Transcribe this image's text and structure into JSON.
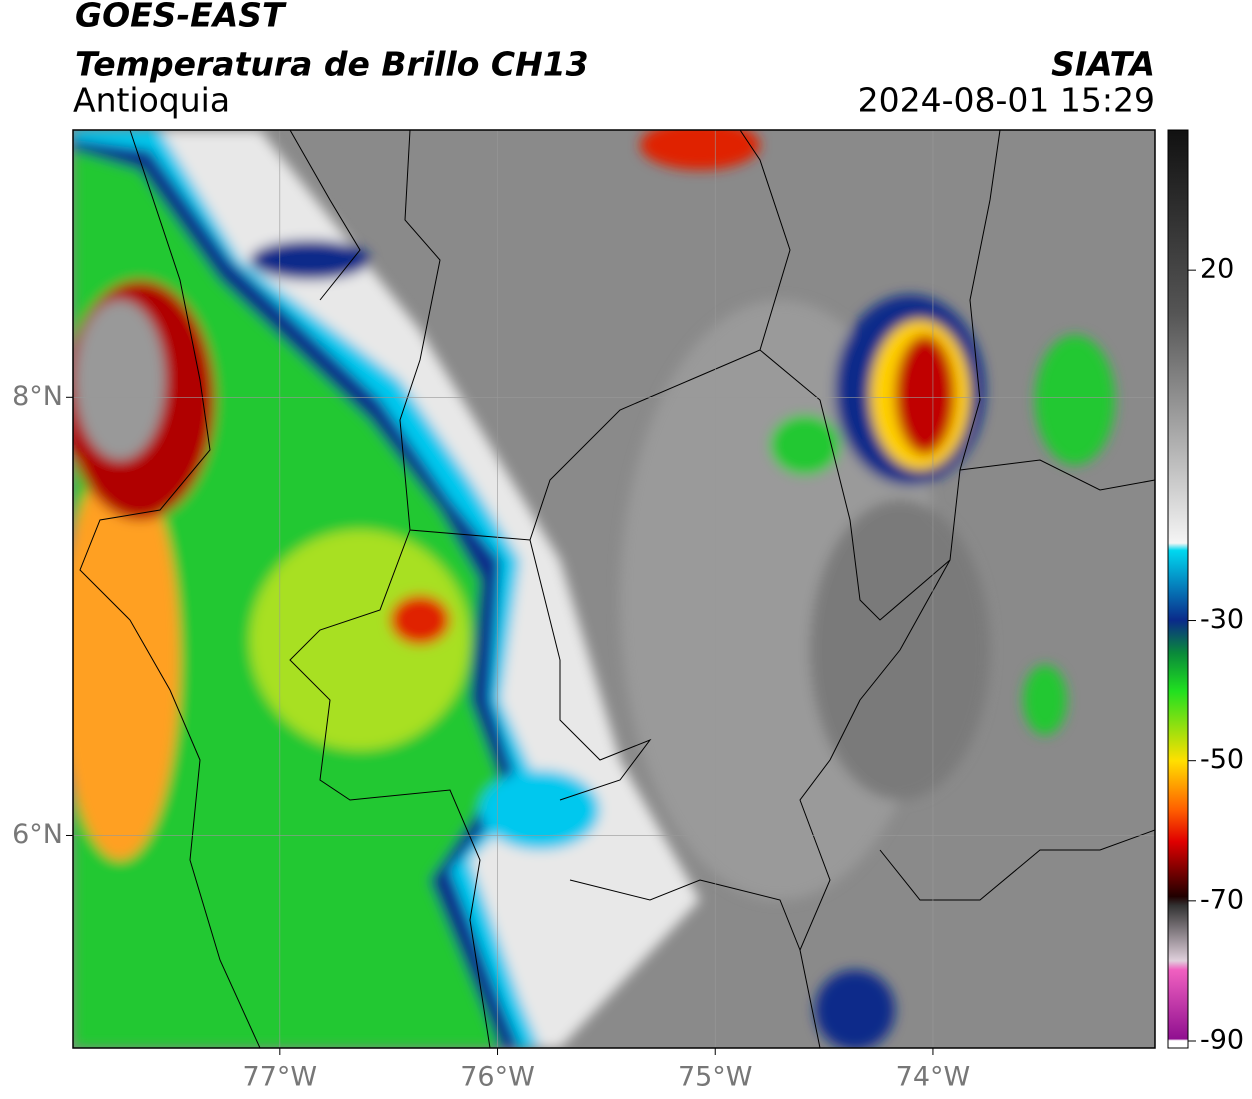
{
  "header": {
    "title": "GOES-EAST",
    "subtitle": "Temperatura de Brillo CH13",
    "region": "Antioquia",
    "source": "SIATA",
    "datetime": "2024-08-01 15:29"
  },
  "map": {
    "xlim": [
      -77.95,
      -72.98
    ],
    "ylim": [
      5.03,
      9.22
    ],
    "xticks": [
      {
        "value": -77,
        "label": "77°W"
      },
      {
        "value": -76,
        "label": "76°W"
      },
      {
        "value": -75,
        "label": "75°W"
      },
      {
        "value": -74,
        "label": "74°W"
      }
    ],
    "yticks": [
      {
        "value": 8,
        "label": "8°N"
      },
      {
        "value": 6,
        "label": "6°N"
      }
    ],
    "grid": true
  },
  "colorbar": {
    "lim": [
      -91,
      40
    ],
    "ticks": [
      20,
      -30,
      -50,
      -70,
      -90
    ]
  }
}
